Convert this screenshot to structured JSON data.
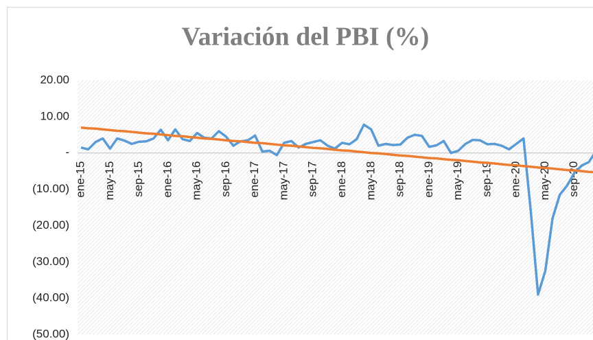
{
  "chart_data": {
    "type": "line",
    "title": "Variación del PBI (%)",
    "categories": [
      "ene-15",
      null,
      null,
      null,
      "may-15",
      null,
      null,
      null,
      "sep-15",
      null,
      null,
      null,
      "ene-16",
      null,
      null,
      null,
      "may-16",
      null,
      null,
      null,
      "sep-16",
      null,
      null,
      null,
      "ene-17",
      null,
      null,
      null,
      "may-17",
      null,
      null,
      null,
      "sep-17",
      null,
      null,
      null,
      "ene-18",
      null,
      null,
      null,
      "may-18",
      null,
      null,
      null,
      "sep-18",
      null,
      null,
      null,
      "ene-19",
      null,
      null,
      null,
      "may-19",
      null,
      null,
      null,
      "sep-19",
      null,
      null,
      null,
      "ene-20",
      null,
      null,
      null,
      "may-20",
      null,
      null,
      null,
      "sep-20",
      null,
      null,
      null
    ],
    "series": [
      {
        "color": "#5b9bd5",
        "values": [
          1.5,
          1.0,
          3.0,
          4.0,
          1.2,
          4.0,
          3.4,
          2.5,
          3.1,
          3.2,
          4.0,
          6.4,
          3.5,
          6.5,
          3.8,
          3.3,
          5.5,
          4.2,
          4.0,
          6.0,
          4.5,
          2.0,
          3.2,
          3.5,
          4.8,
          0.4,
          0.6,
          -0.6,
          2.8,
          3.3,
          1.5,
          2.5,
          3.0,
          3.5,
          2.0,
          1.2,
          2.8,
          2.4,
          3.8,
          7.8,
          6.5,
          2.0,
          2.5,
          2.2,
          2.3,
          4.2,
          5.0,
          4.7,
          1.7,
          2.1,
          3.3,
          0.0,
          0.6,
          2.5,
          3.6,
          3.5,
          2.4,
          2.5,
          2.0,
          1.0,
          2.5,
          4.0,
          -16.0,
          -39.0,
          -32.5,
          -18.0,
          -11.5,
          -9.0,
          -5.5,
          -3.5,
          -2.5,
          0.5
        ]
      },
      {
        "color": "#ed7d31",
        "values": [
          7.0,
          6.8,
          6.7,
          6.5,
          6.3,
          6.1,
          6.0,
          5.8,
          5.6,
          5.4,
          5.3,
          5.1,
          4.9,
          4.7,
          4.6,
          4.4,
          4.2,
          4.0,
          3.9,
          3.7,
          3.5,
          3.3,
          3.2,
          3.0,
          2.8,
          2.7,
          2.5,
          2.3,
          2.1,
          2.0,
          1.8,
          1.6,
          1.4,
          1.3,
          1.1,
          0.9,
          0.7,
          0.6,
          0.4,
          0.2,
          0.0,
          -0.1,
          -0.3,
          -0.5,
          -0.7,
          -0.8,
          -1.0,
          -1.2,
          -1.4,
          -1.5,
          -1.7,
          -1.9,
          -2.0,
          -2.2,
          -2.4,
          -2.6,
          -2.7,
          -2.9,
          -3.1,
          -3.3,
          -3.4,
          -3.6,
          -3.8,
          -4.0,
          -4.1,
          -4.3,
          -4.5,
          -4.7,
          -4.8,
          -5.0,
          -5.2,
          -5.3
        ]
      }
    ],
    "ylim": [
      -50,
      20
    ],
    "yticks": [
      {
        "value": -50,
        "label": "(50.00)"
      },
      {
        "value": -40,
        "label": "(40.00)"
      },
      {
        "value": -30,
        "label": "(30.00)"
      },
      {
        "value": -20,
        "label": "(20.00)"
      },
      {
        "value": -10,
        "label": "(10.00)"
      },
      {
        "value": 0,
        "label": "-"
      },
      {
        "value": 10,
        "label": "10.00"
      },
      {
        "value": 20,
        "label": "20.00"
      }
    ]
  }
}
